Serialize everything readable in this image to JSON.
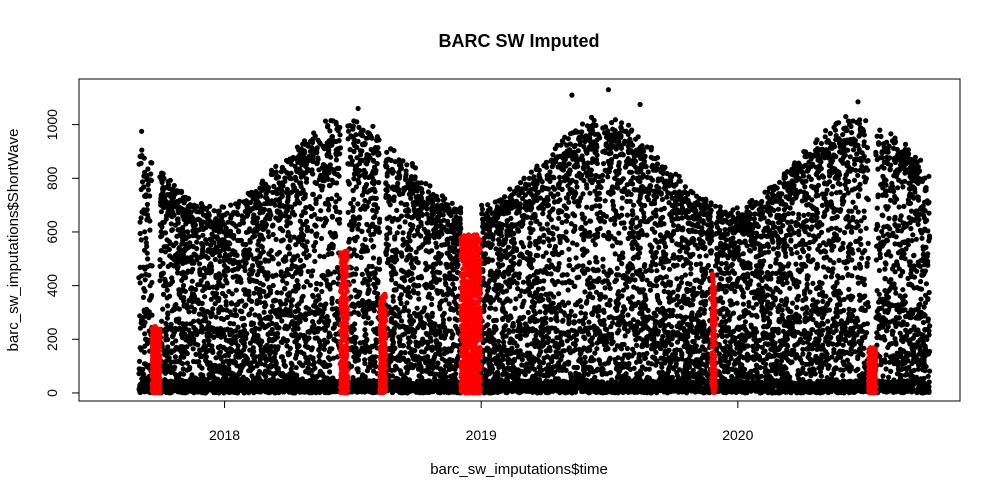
{
  "chart_data": {
    "type": "scatter",
    "title": "BARC SW Imputed",
    "xlabel": "barc_sw_imputations$time",
    "ylabel": "barc_sw_imputations$ShortWave",
    "xlim": [
      "2017-06-08",
      "2020-11-12"
    ],
    "ylim": [
      -30,
      1170
    ],
    "x_ticks": [
      "2018-01-01",
      "2019-01-01",
      "2020-01-01"
    ],
    "x_tick_labels": [
      "2018",
      "2019",
      "2020"
    ],
    "y_ticks": [
      0,
      200,
      400,
      600,
      800,
      1000
    ],
    "y_tick_labels": [
      "0",
      "200",
      "400",
      "600",
      "800",
      "1000"
    ],
    "grid": false,
    "legend": "none",
    "x_range": [
      "2017-09-01",
      "2020-09-30"
    ],
    "y_range": [
      0,
      1130
    ],
    "series": [
      {
        "role": "observed",
        "color": "#000000",
        "description": "Dense daily/sub-daily shortwave radiation observations following a seasonal cycle; summer envelope near 1000-1100, winter envelope near 600-700, many points near 0",
        "highlighted_points": [
          {
            "x": "2019-07-01",
            "y": 1130
          },
          {
            "x": "2019-08-15",
            "y": 1075
          },
          {
            "x": "2019-05-10",
            "y": 1110
          },
          {
            "x": "2020-06-20",
            "y": 1085
          },
          {
            "x": "2018-07-10",
            "y": 1060
          },
          {
            "x": "2017-09-05",
            "y": 975
          }
        ]
      },
      {
        "role": "imputed",
        "color": "#ff0000",
        "description": "Imputed values filling data gaps",
        "gaps": [
          {
            "start": "2017-09-20",
            "end": "2017-10-01",
            "y_max": 250
          },
          {
            "start": "2018-06-15",
            "end": "2018-06-25",
            "y_max": 530
          },
          {
            "start": "2018-08-10",
            "end": "2018-08-18",
            "y_max": 370
          },
          {
            "start": "2018-12-03",
            "end": "2018-12-31",
            "y_max": 590
          },
          {
            "start": "2019-11-25",
            "end": "2019-11-30",
            "y_max": 450
          },
          {
            "start": "2020-07-05",
            "end": "2020-07-15",
            "y_max": 170
          }
        ]
      }
    ]
  }
}
